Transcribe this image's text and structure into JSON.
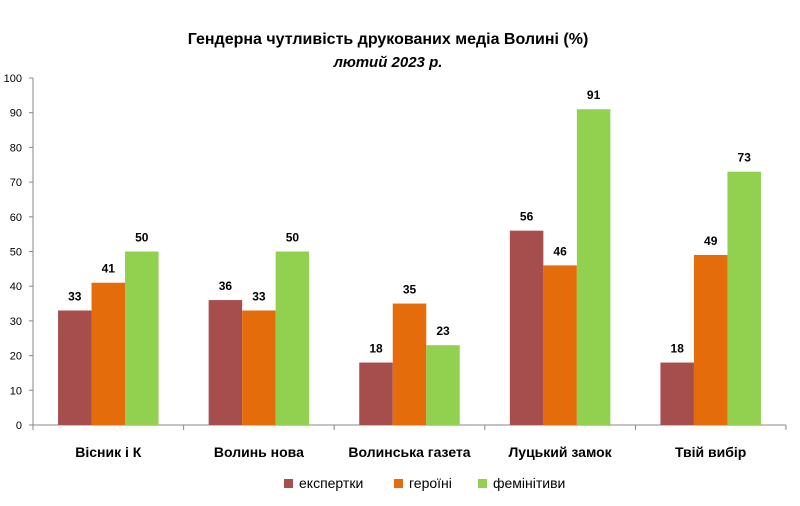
{
  "chart_data": {
    "type": "bar",
    "title": "Гендерна чутливість друкованих медіа Волині (%)",
    "subtitle": "лютий 2023 р.",
    "categories": [
      "Вісник і К",
      "Волинь нова",
      "Волинська газета",
      "Луцький замок",
      "Твій вибір"
    ],
    "series": [
      {
        "name": "експертки",
        "color": "#A64D4D",
        "values": [
          33,
          36,
          18,
          56,
          18
        ]
      },
      {
        "name": "героїні",
        "color": "#E46C0A",
        "values": [
          41,
          33,
          35,
          46,
          49
        ]
      },
      {
        "name": "фемінітиви",
        "color": "#92D050",
        "values": [
          50,
          50,
          23,
          91,
          73
        ]
      }
    ],
    "ylim": [
      0,
      100
    ],
    "yticks": [
      0,
      10,
      20,
      30,
      40,
      50,
      60,
      70,
      80,
      90,
      100
    ],
    "grid": false,
    "legend_position": "bottom"
  }
}
